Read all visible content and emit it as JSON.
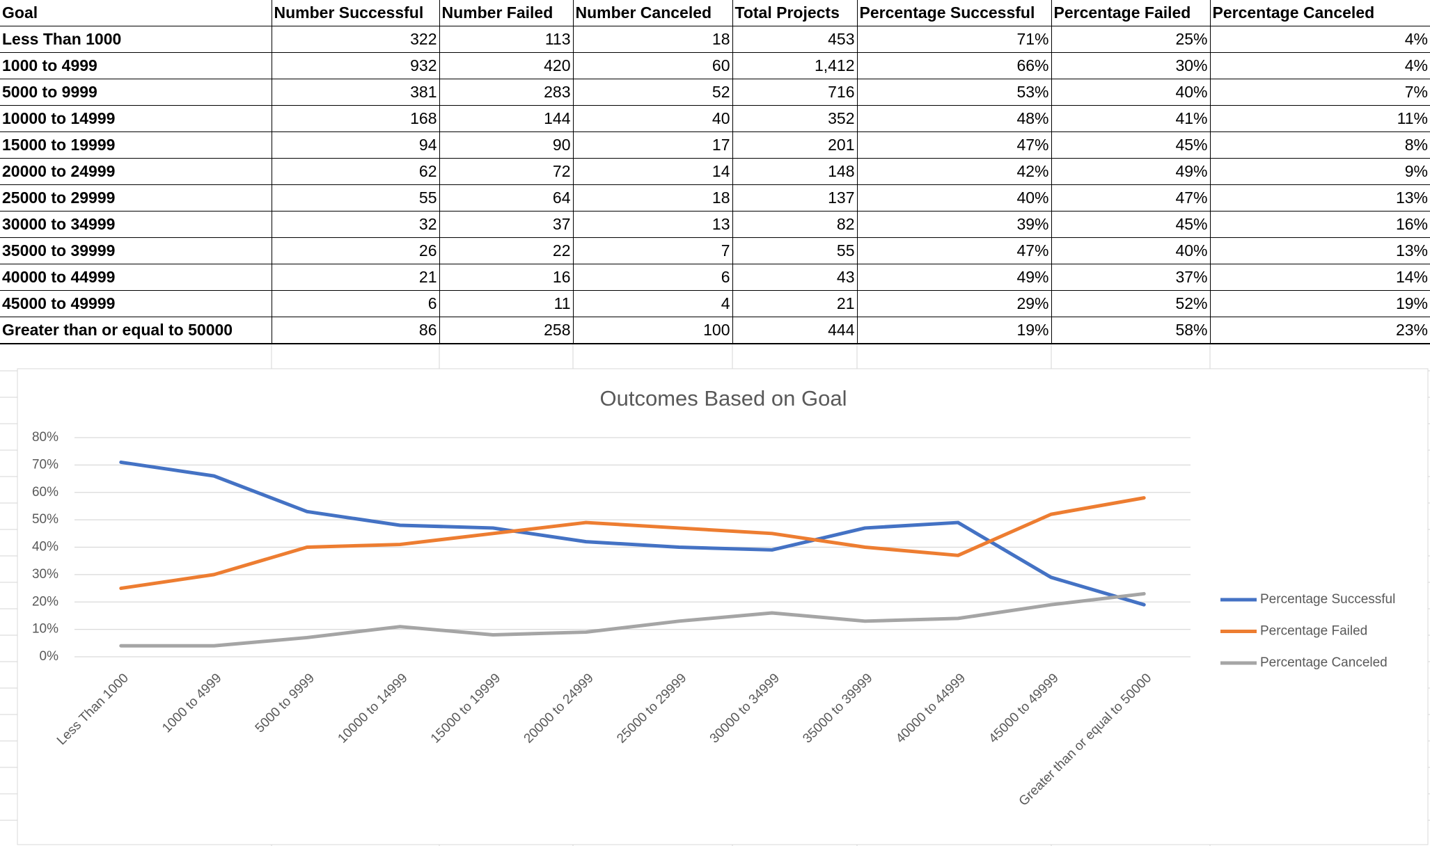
{
  "table": {
    "header": [
      "Goal",
      "Number Successful",
      "Number Failed",
      "Number Canceled",
      "Total Projects",
      "Percentage Successful",
      "Percentage Failed",
      "Percentage Canceled"
    ],
    "rows": [
      [
        "Less Than 1000",
        "322",
        "113",
        "18",
        "453",
        "71%",
        "25%",
        "4%"
      ],
      [
        "1000 to 4999",
        "932",
        "420",
        "60",
        "1,412",
        "66%",
        "30%",
        "4%"
      ],
      [
        "5000 to 9999",
        "381",
        "283",
        "52",
        "716",
        "53%",
        "40%",
        "7%"
      ],
      [
        "10000 to 14999",
        "168",
        "144",
        "40",
        "352",
        "48%",
        "41%",
        "11%"
      ],
      [
        "15000 to 19999",
        "94",
        "90",
        "17",
        "201",
        "47%",
        "45%",
        "8%"
      ],
      [
        "20000 to 24999",
        "62",
        "72",
        "14",
        "148",
        "42%",
        "49%",
        "9%"
      ],
      [
        "25000 to 29999",
        "55",
        "64",
        "18",
        "137",
        "40%",
        "47%",
        "13%"
      ],
      [
        "30000 to 34999",
        "32",
        "37",
        "13",
        "82",
        "39%",
        "45%",
        "16%"
      ],
      [
        "35000 to 39999",
        "26",
        "22",
        "7",
        "55",
        "47%",
        "40%",
        "13%"
      ],
      [
        "40000 to 44999",
        "21",
        "16",
        "6",
        "43",
        "49%",
        "37%",
        "14%"
      ],
      [
        "45000 to 49999",
        "6",
        "11",
        "4",
        "21",
        "29%",
        "52%",
        "19%"
      ],
      [
        "Greater than or equal to 50000",
        "86",
        "258",
        "100",
        "444",
        "19%",
        "58%",
        "23%"
      ]
    ]
  },
  "chart_data": {
    "type": "line",
    "title": "Outcomes Based on Goal",
    "categories": [
      "Less Than 1000",
      "1000 to 4999",
      "5000 to 9999",
      "10000 to 14999",
      "15000 to 19999",
      "20000 to 24999",
      "25000 to 29999",
      "30000 to 34999",
      "35000 to 39999",
      "40000 to 44999",
      "45000 to 49999",
      "Greater than or equal to 50000"
    ],
    "series": [
      {
        "name": "Percentage Successful",
        "color": "#4472c4",
        "values": [
          71,
          66,
          53,
          48,
          47,
          42,
          40,
          39,
          47,
          49,
          29,
          19
        ]
      },
      {
        "name": "Percentage Failed",
        "color": "#ed7d31",
        "values": [
          25,
          30,
          40,
          41,
          45,
          49,
          47,
          45,
          40,
          37,
          52,
          58
        ]
      },
      {
        "name": "Percentage Canceled",
        "color": "#a5a5a5",
        "values": [
          4,
          4,
          7,
          11,
          8,
          9,
          13,
          16,
          13,
          14,
          19,
          23
        ]
      }
    ],
    "ylim": [
      0,
      80
    ],
    "yticks": [
      {
        "value": 0,
        "label": "0%"
      },
      {
        "value": 10,
        "label": "10%"
      },
      {
        "value": 20,
        "label": "20%"
      },
      {
        "value": 30,
        "label": "30%"
      },
      {
        "value": 40,
        "label": "40%"
      },
      {
        "value": 50,
        "label": "50%"
      },
      {
        "value": 60,
        "label": "60%"
      },
      {
        "value": 70,
        "label": "70%"
      },
      {
        "value": 80,
        "label": "80%"
      }
    ],
    "grid": true,
    "legend": "right"
  }
}
